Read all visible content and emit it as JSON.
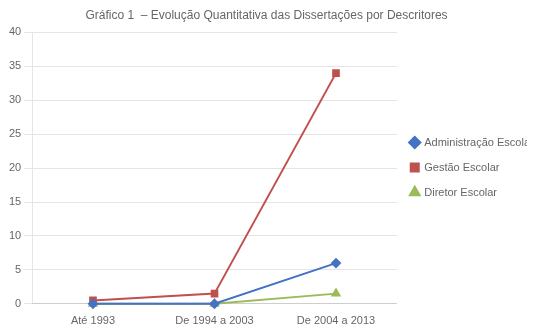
{
  "chart_data": {
    "type": "line",
    "title": "Gráfico 1  – Evolução Quantitativa das Dissertações por Descritores",
    "categories": [
      "Até 1993",
      "De 1994 a 2003",
      "De 2004 a 2013"
    ],
    "series": [
      {
        "name": "Administração Escolar",
        "values": [
          0,
          0,
          6
        ],
        "color": "#4472C4",
        "marker": "diamond"
      },
      {
        "name": "Gestão Escolar",
        "values": [
          0.5,
          1.5,
          34
        ],
        "color": "#C0504D",
        "marker": "square"
      },
      {
        "name": "Diretor Escolar",
        "values": [
          0,
          0,
          1.5
        ],
        "color": "#9BBB59",
        "marker": "triangle"
      }
    ],
    "ylim": [
      0,
      40
    ],
    "yticks": [
      0,
      5,
      10,
      15,
      20,
      25,
      30,
      35,
      40
    ],
    "grid": true,
    "legend": "right"
  }
}
